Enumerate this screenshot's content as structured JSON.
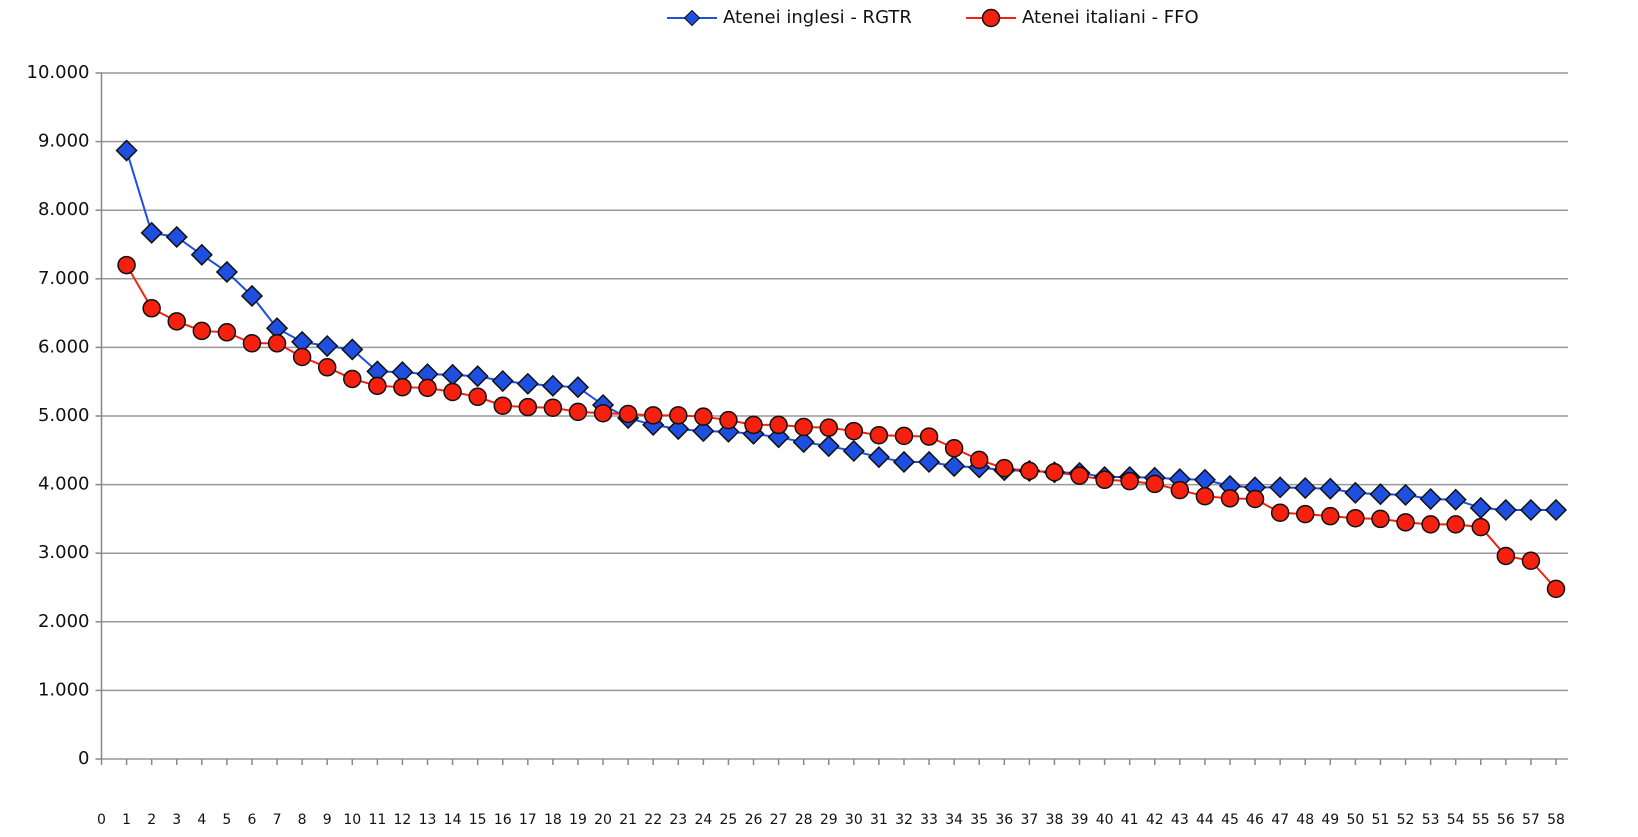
{
  "chart_data": {
    "type": "line",
    "x": [
      1,
      2,
      3,
      4,
      5,
      6,
      7,
      8,
      9,
      10,
      11,
      12,
      13,
      14,
      15,
      16,
      17,
      18,
      19,
      20,
      21,
      22,
      23,
      24,
      25,
      26,
      27,
      28,
      29,
      30,
      31,
      32,
      33,
      34,
      35,
      36,
      37,
      38,
      39,
      40,
      41,
      42,
      43,
      44,
      45,
      46,
      47,
      48,
      49,
      50,
      51,
      52,
      53,
      54,
      55,
      56,
      57,
      58
    ],
    "series": [
      {
        "name": "Atenei inglesi - RGTR",
        "color": "#1f4fe0",
        "marker": "diamond",
        "values": [
          8870,
          7670,
          7610,
          7350,
          7100,
          6750,
          6280,
          6080,
          6020,
          5970,
          5650,
          5640,
          5610,
          5600,
          5580,
          5510,
          5470,
          5440,
          5420,
          5160,
          4970,
          4870,
          4810,
          4780,
          4770,
          4740,
          4690,
          4620,
          4560,
          4490,
          4400,
          4330,
          4330,
          4270,
          4250,
          4210,
          4200,
          4180,
          4170,
          4110,
          4110,
          4100,
          4080,
          4070,
          3980,
          3960,
          3960,
          3950,
          3940,
          3880,
          3860,
          3850,
          3790,
          3780,
          3660,
          3630,
          3630,
          3630
        ]
      },
      {
        "name": "Atenei italiani - FFO",
        "color": "#f5200e",
        "marker": "circle",
        "values": [
          7200,
          6570,
          6380,
          6240,
          6220,
          6060,
          6060,
          5860,
          5710,
          5540,
          5440,
          5420,
          5410,
          5350,
          5280,
          5150,
          5130,
          5120,
          5060,
          5040,
          5030,
          5010,
          5010,
          4990,
          4940,
          4870,
          4870,
          4840,
          4830,
          4780,
          4720,
          4710,
          4700,
          4530,
          4360,
          4240,
          4200,
          4180,
          4130,
          4070,
          4050,
          4010,
          3920,
          3830,
          3800,
          3790,
          3590,
          3570,
          3540,
          3510,
          3500,
          3450,
          3420,
          3420,
          3380,
          2960,
          2890,
          2480
        ]
      }
    ],
    "xlim": [
      0,
      58
    ],
    "xticks": [
      0,
      1,
      2,
      3,
      4,
      5,
      6,
      7,
      8,
      9,
      10,
      11,
      12,
      13,
      14,
      15,
      16,
      17,
      18,
      19,
      20,
      21,
      22,
      23,
      24,
      25,
      26,
      27,
      28,
      29,
      30,
      31,
      32,
      33,
      34,
      35,
      36,
      37,
      38,
      39,
      40,
      41,
      42,
      43,
      44,
      45,
      46,
      47,
      48,
      49,
      50,
      51,
      52,
      53,
      54,
      55,
      56,
      57,
      58
    ],
    "ylim": [
      0,
      10000
    ],
    "yticks": [
      0,
      {
        "value": 1000,
        "label": "1.000"
      },
      {
        "value": 2000,
        "label": "2.000"
      },
      {
        "value": 3000,
        "label": "3.000"
      },
      {
        "value": 4000,
        "label": "4.000"
      },
      {
        "value": 5000,
        "label": "5.000"
      },
      {
        "value": 6000,
        "label": "6.000"
      },
      {
        "value": 7000,
        "label": "7.000"
      },
      {
        "value": 8000,
        "label": "8.000"
      },
      {
        "value": 9000,
        "label": "9.000"
      },
      {
        "value": 10000,
        "label": "10.000"
      }
    ],
    "grid": true,
    "legend": "top"
  }
}
